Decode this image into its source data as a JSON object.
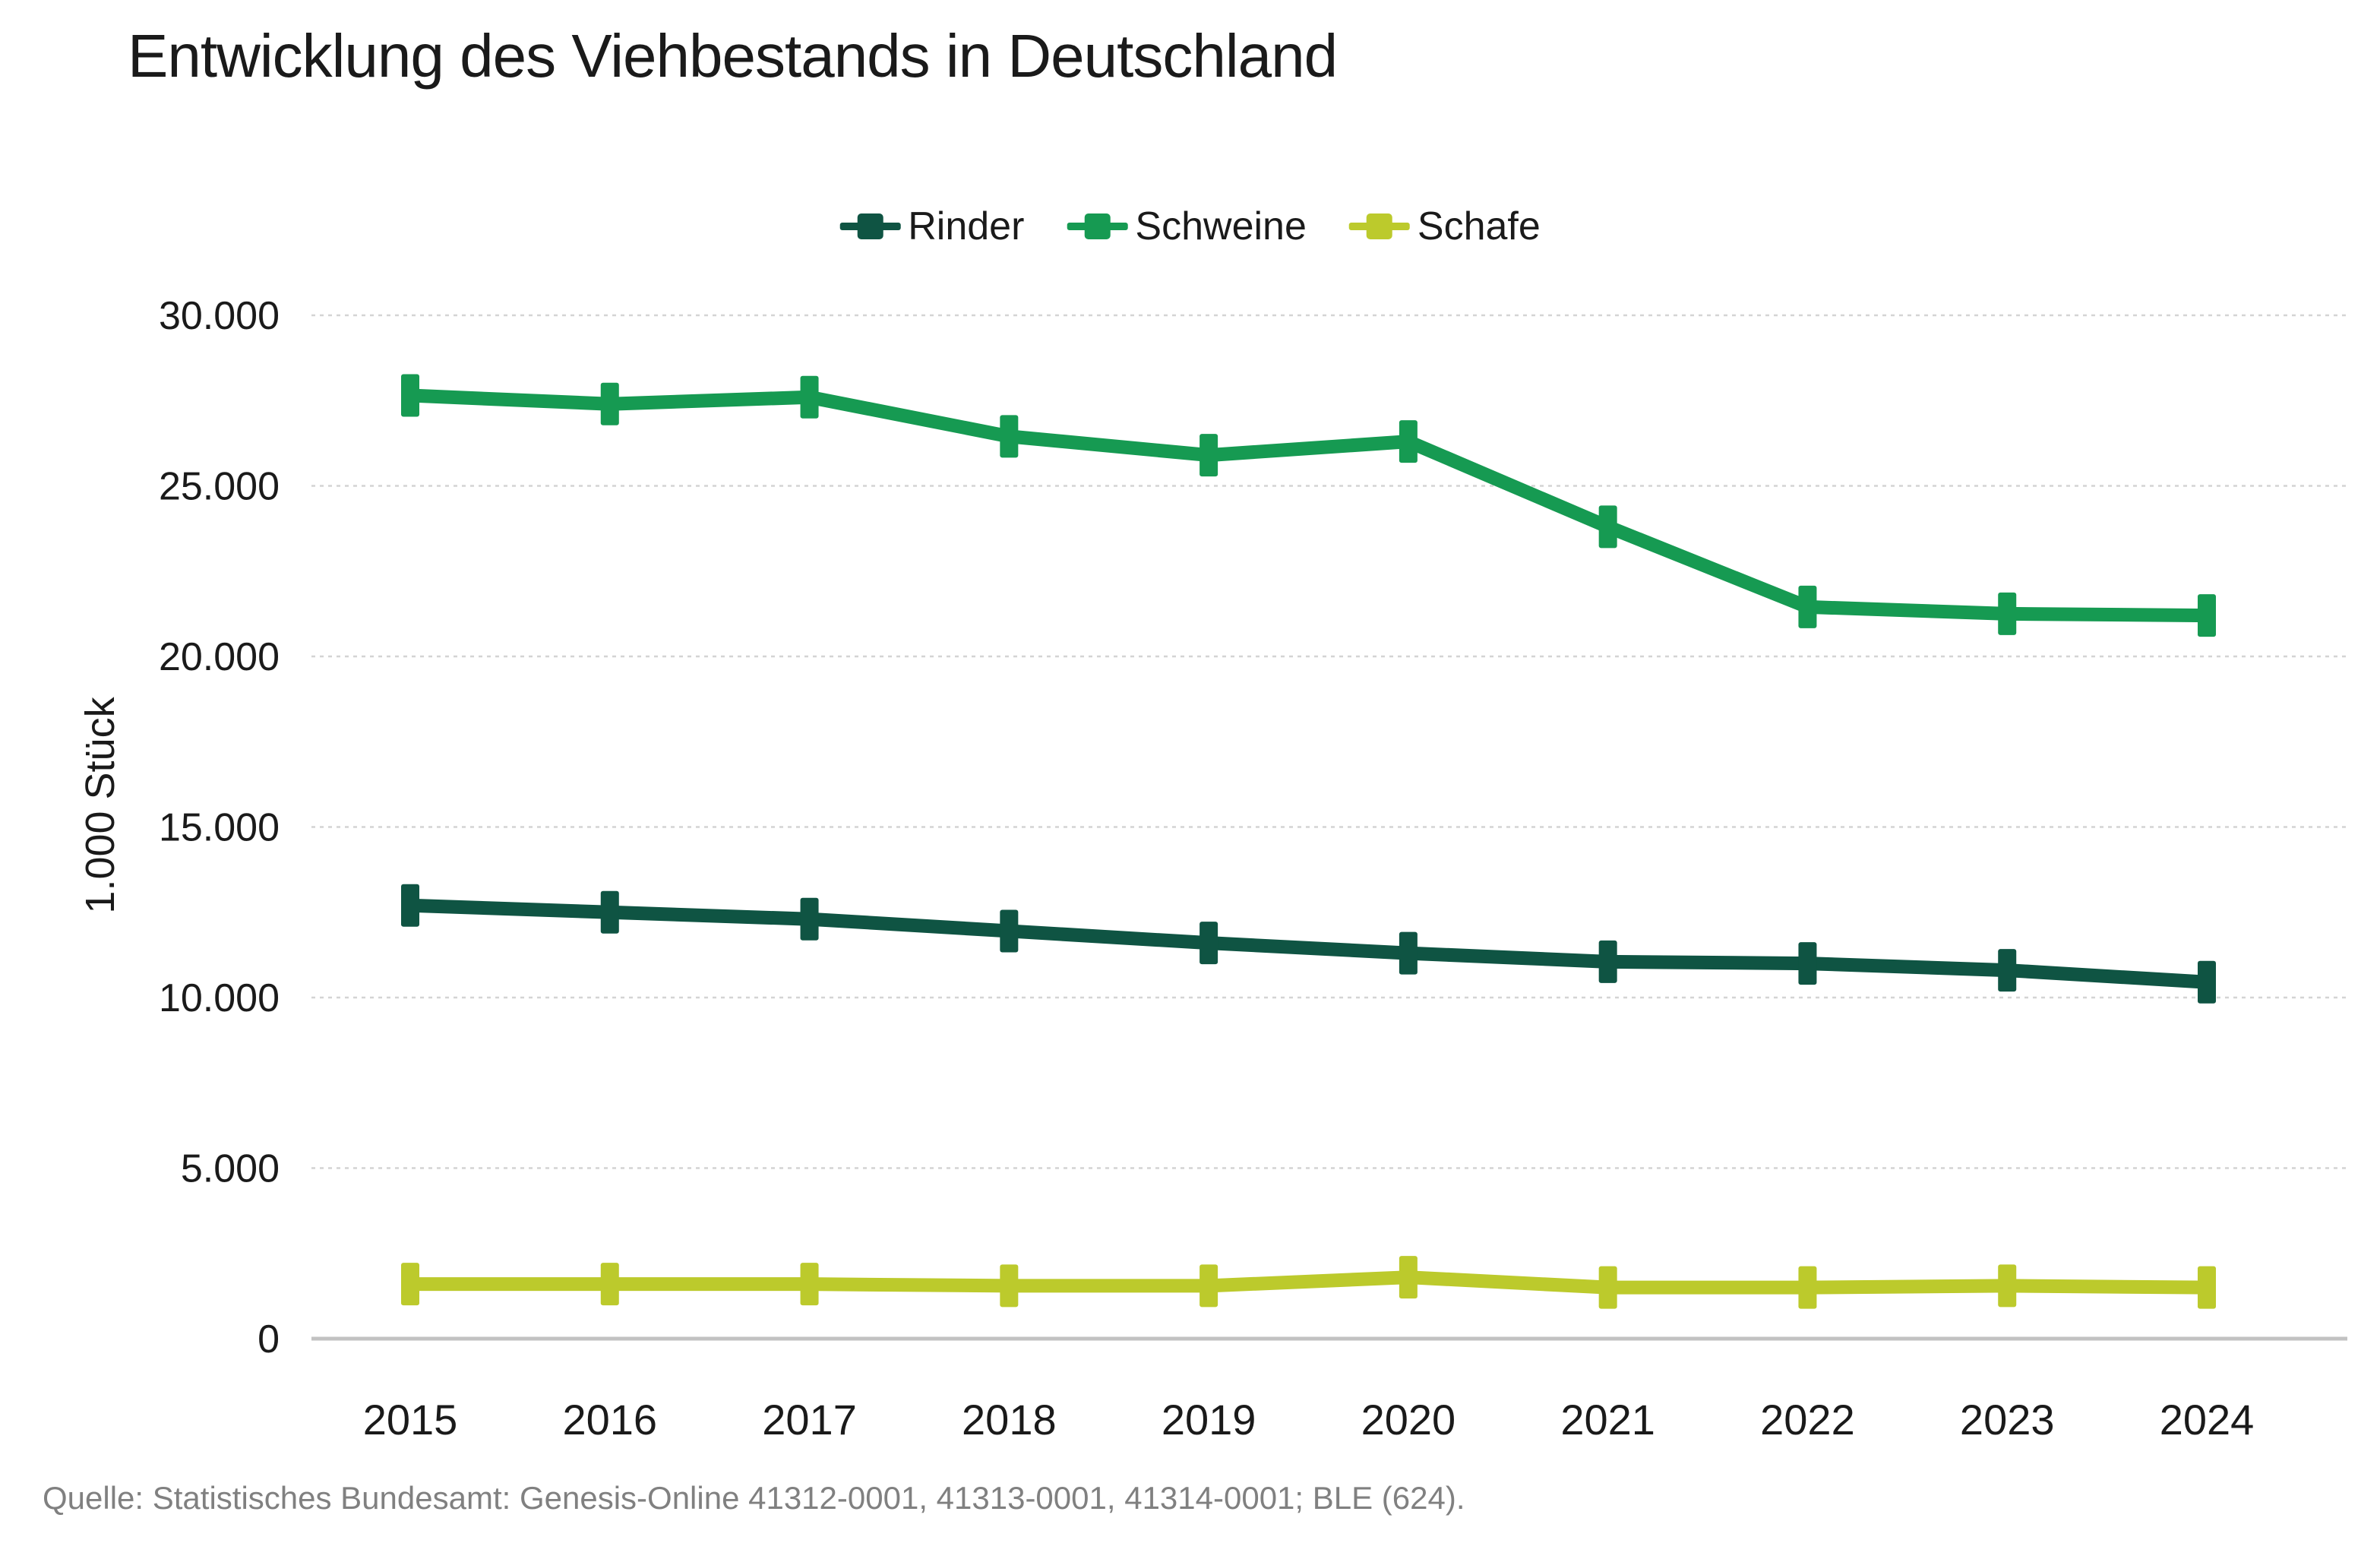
{
  "page": {
    "source_note": "Quelle: Statistisches Bundesamt: Genesis-Online 41312-0001, 41313-0001, 41314-0001; BLE (624)."
  },
  "chart_data": {
    "type": "line",
    "title": "Entwicklung des Viehbestands in Deutschland",
    "xlabel": "",
    "ylabel": "1.000 Stück",
    "categories": [
      "2015",
      "2016",
      "2017",
      "2018",
      "2019",
      "2020",
      "2021",
      "2022",
      "2023",
      "2024"
    ],
    "series": [
      {
        "name": "Rinder",
        "color": "#0f5443",
        "values": [
          12700,
          12500,
          12300,
          11950,
          11600,
          11300,
          11050,
          11000,
          10800,
          10450
        ]
      },
      {
        "name": "Schweine",
        "color": "#169a52",
        "values": [
          27650,
          27400,
          27600,
          26450,
          25900,
          26300,
          23800,
          21450,
          21250,
          21200
        ]
      },
      {
        "name": "Schafe",
        "color": "#bcca2c",
        "values": [
          1600,
          1600,
          1600,
          1550,
          1550,
          1800,
          1500,
          1500,
          1550,
          1500
        ]
      }
    ],
    "ylim": [
      0,
      30000
    ],
    "ytick_values": [
      0,
      5000,
      10000,
      15000,
      20000,
      25000,
      30000
    ],
    "ytick_labels": [
      "0",
      "5.000",
      "10.000",
      "15.000",
      "20.000",
      "25.000",
      "30.000"
    ],
    "grid": "horizontal-dashed",
    "grid_color": "#d4d4d4",
    "axis_line_color": "#c2c2c2",
    "text_color": "#1a1a1a",
    "legend_position": "top-center",
    "marker": "vertical-square",
    "legend_entries": [
      "Rinder",
      "Schweine",
      "Schafe"
    ]
  }
}
